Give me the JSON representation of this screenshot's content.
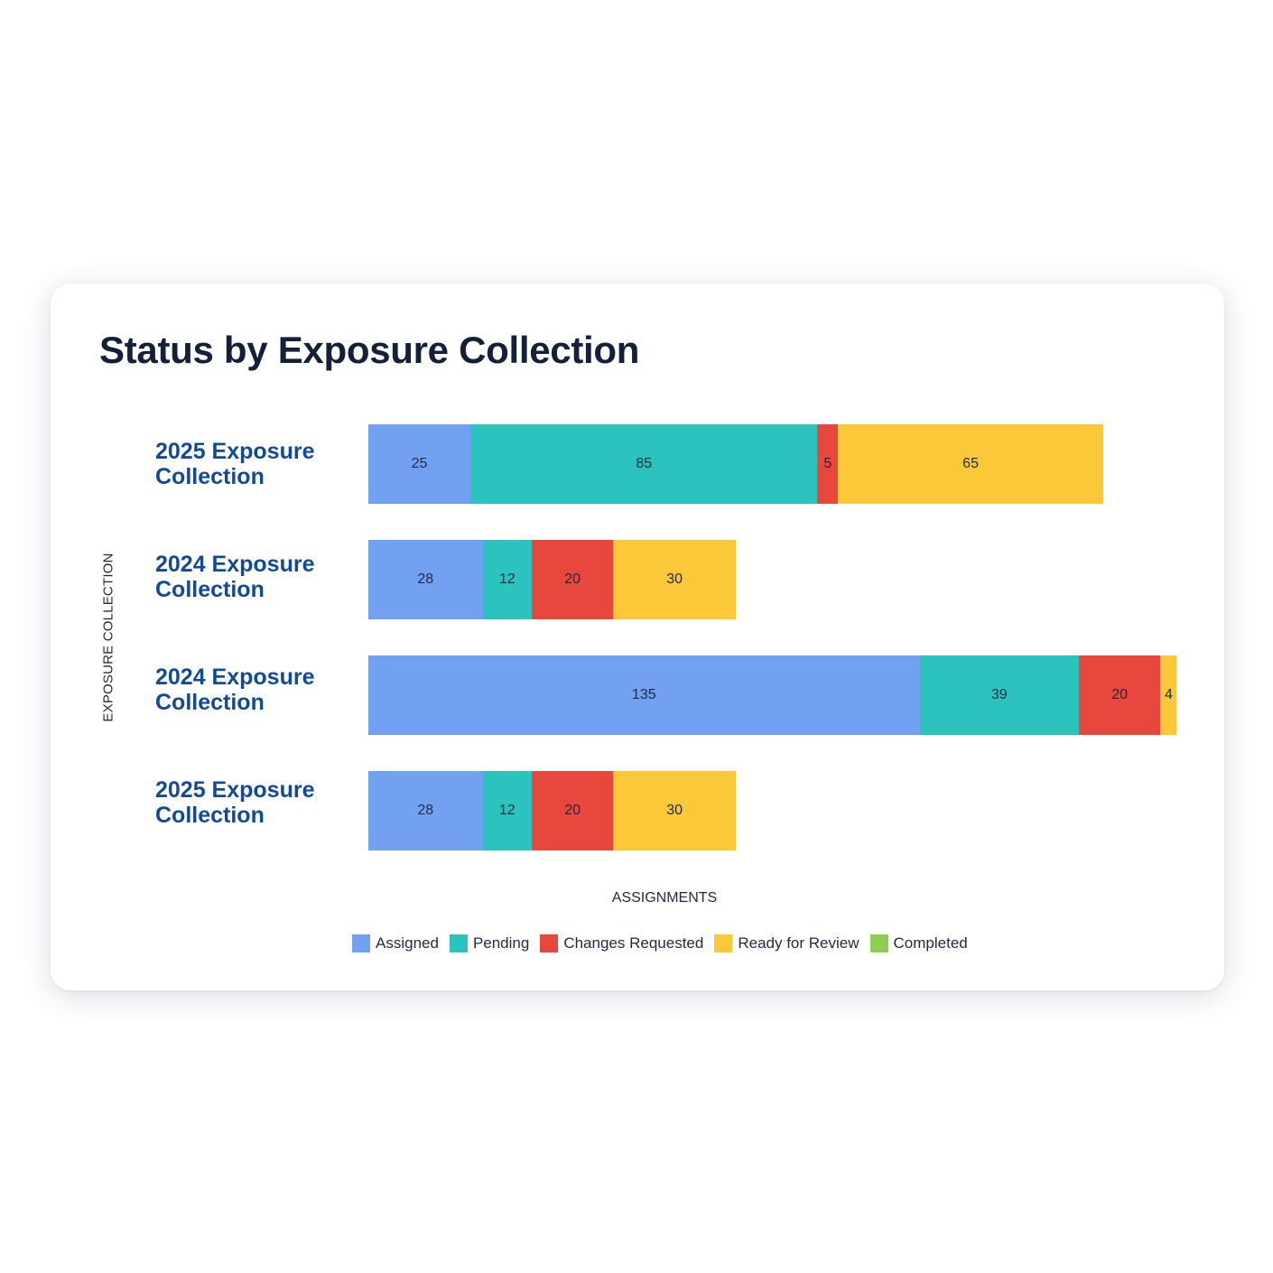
{
  "chart_data": {
    "type": "bar",
    "orientation": "horizontal",
    "stacked": true,
    "title": "Status by Exposure Collection",
    "xlabel": "ASSIGNMENTS",
    "ylabel": "EXPOSURE COLLECTION",
    "xlim": [
      0,
      199
    ],
    "grid": false,
    "legend_position": "bottom",
    "categories": [
      "2025 Exposure Collection",
      "2024 Exposure Collection",
      "2024 Exposure Collection",
      "2025 Exposure Collection"
    ],
    "series": [
      {
        "name": "Assigned",
        "color": "#72a1f1",
        "values": [
          25,
          28,
          135,
          28
        ]
      },
      {
        "name": "Pending",
        "color": "#2cc3be",
        "values": [
          85,
          12,
          39,
          12
        ]
      },
      {
        "name": "Changes Requested",
        "color": "#e8473d",
        "values": [
          5,
          20,
          20,
          20
        ]
      },
      {
        "name": "Ready for Review",
        "color": "#fbc83a",
        "values": [
          65,
          30,
          4,
          30
        ]
      },
      {
        "name": "Completed",
        "color": "#8cce54",
        "values": [
          0,
          0,
          0,
          0
        ]
      }
    ]
  }
}
